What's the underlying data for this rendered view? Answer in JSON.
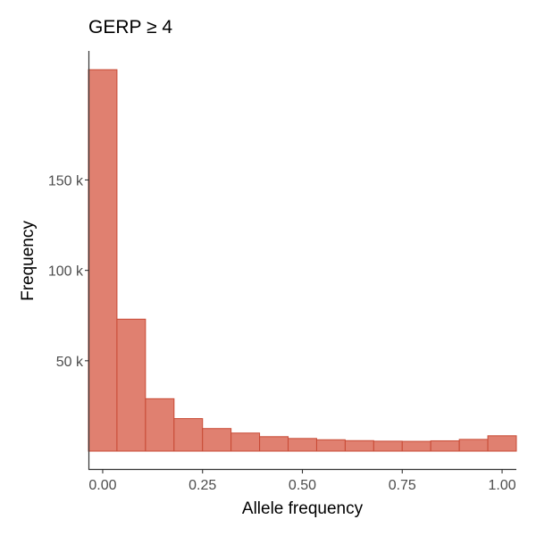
{
  "chart_data": {
    "type": "bar",
    "subtype": "histogram",
    "title": "GERP ≥ 4",
    "xlabel": "Allele frequency",
    "ylabel": "Frequency",
    "xlim": [
      -0.0357,
      1.0357
    ],
    "ylim": [
      0,
      212000
    ],
    "x_ticks": [
      0,
      0.25,
      0.5,
      0.75,
      1
    ],
    "x_tick_labels": [
      "0.00",
      "0.25",
      "0.50",
      "0.75",
      "1.00"
    ],
    "y_ticks": [
      50000,
      100000,
      150000
    ],
    "y_tick_labels": [
      "50 k",
      "100 k",
      "150 k"
    ],
    "bin_width": 0.0714,
    "bin_centers": [
      0.0,
      0.0714,
      0.1429,
      0.2143,
      0.2857,
      0.3571,
      0.4286,
      0.5,
      0.5714,
      0.6429,
      0.7143,
      0.7857,
      0.8571,
      0.9286,
      1.0
    ],
    "values": [
      211000,
      73000,
      29000,
      18000,
      12500,
      10000,
      8000,
      7000,
      6300,
      5800,
      5500,
      5400,
      5700,
      6500,
      8500
    ],
    "grid": false,
    "legend": "none",
    "colors": {
      "fill": "#e08070",
      "stroke": "#c84a35"
    }
  }
}
